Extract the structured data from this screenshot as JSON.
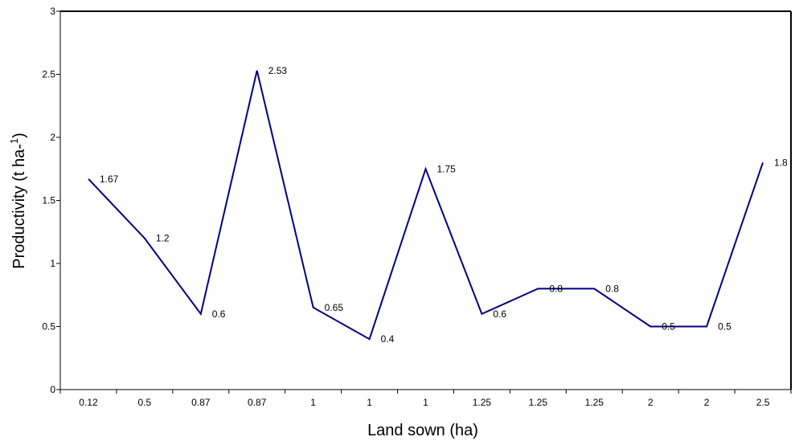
{
  "chart_data": {
    "type": "line",
    "categories": [
      "0.12",
      "0.5",
      "0.87",
      "0.87",
      "1",
      "1",
      "1",
      "1.25",
      "1.25",
      "1.25",
      "2",
      "2",
      "2.5"
    ],
    "series": [
      {
        "values": [
          1.67,
          1.2,
          0.6,
          2.53,
          0.65,
          0.4,
          1.75,
          0.6,
          0.8,
          0.8,
          0.5,
          0.5,
          1.8
        ]
      }
    ],
    "data_labels": [
      "1.67",
      "1.2",
      "0.6",
      "2.53",
      "0.65",
      "0.4",
      "1.75",
      "0.6",
      "0.8",
      "0.8",
      "0.5",
      "0.5",
      "1.8"
    ],
    "xlabel": "Land sown (ha)",
    "ylabel": {
      "prefix": "Productivity (t ha-",
      "superscript": "1",
      "suffix": ")"
    },
    "ylim": [
      0,
      3
    ],
    "yticks": [
      "0",
      "0.5",
      "1",
      "1.5",
      "2",
      "2.5",
      "3"
    ],
    "grid": false,
    "legend": false,
    "line_color": "#000080"
  }
}
